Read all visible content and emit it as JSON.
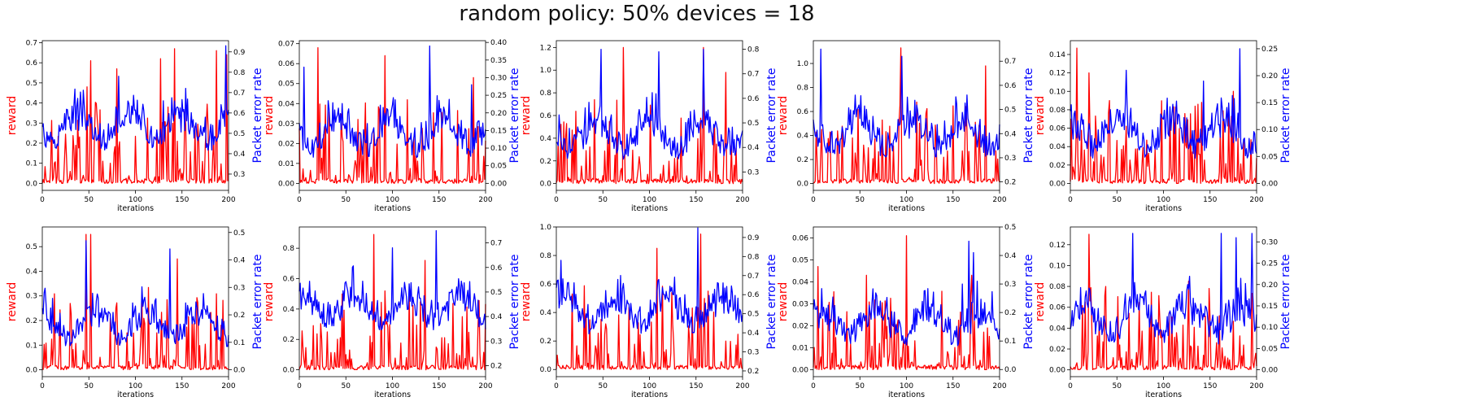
{
  "figure": {
    "title": "random policy: 50% devices = 18"
  },
  "colors": {
    "reward": "#ff0000",
    "per": "#0000ff"
  },
  "chart_data": [
    {
      "type": "line",
      "xlabel": "iterations",
      "ylabel": "reward",
      "y2label": "Packet error rate",
      "xlim": [
        0,
        200
      ],
      "xticks": [
        0,
        50,
        100,
        150,
        200
      ],
      "ylim": [
        -0.035,
        0.71
      ],
      "yticks": [
        "0.0",
        "0.1",
        "0.2",
        "0.3",
        "0.4",
        "0.5",
        "0.6",
        "0.7"
      ],
      "y2lim": [
        0.22,
        0.955
      ],
      "y2ticks": [
        "0.3",
        "0.4",
        "0.5",
        "0.6",
        "0.7",
        "0.8",
        "0.9"
      ],
      "series": [
        {
          "axis": "left",
          "color": "#ff0000",
          "min": 0.0,
          "max": 0.67,
          "peaks": [
            [
              48,
              0.48
            ],
            [
              52,
              0.61
            ],
            [
              80,
              0.57
            ],
            [
              127,
              0.62
            ],
            [
              142,
              0.67
            ],
            [
              187,
              0.66
            ],
            [
              198,
              0.64
            ]
          ]
        },
        {
          "axis": "right",
          "color": "#0000ff",
          "min": 0.3,
          "max": 0.93,
          "peaks": [
            [
              82,
              0.78
            ],
            [
              130,
              0.66
            ],
            [
              197,
              0.93
            ]
          ]
        }
      ]
    },
    {
      "type": "line",
      "xlabel": "iterations",
      "ylabel": "reward",
      "y2label": "Packet error rate",
      "xlim": [
        0,
        200
      ],
      "xticks": [
        0,
        50,
        100,
        150,
        200
      ],
      "ylim": [
        -0.0035,
        0.0715
      ],
      "yticks": [
        "0.00",
        "0.01",
        "0.02",
        "0.03",
        "0.04",
        "0.05",
        "0.06",
        "0.07"
      ],
      "y2lim": [
        -0.02,
        0.405
      ],
      "y2ticks": [
        "0.00",
        "0.05",
        "0.10",
        "0.15",
        "0.20",
        "0.25",
        "0.30",
        "0.35",
        "0.40"
      ],
      "series": [
        {
          "axis": "left",
          "color": "#ff0000",
          "min": 0.0,
          "max": 0.068,
          "peaks": [
            [
              20,
              0.068
            ],
            [
              92,
              0.064
            ],
            [
              187,
              0.053
            ]
          ]
        },
        {
          "axis": "right",
          "color": "#0000ff",
          "min": 0.0,
          "max": 0.39,
          "peaks": [
            [
              5,
              0.33
            ],
            [
              140,
              0.39
            ],
            [
              185,
              0.28
            ]
          ]
        }
      ]
    },
    {
      "type": "line",
      "xlabel": "iterations",
      "ylabel": "reward",
      "y2label": "Packet error rate",
      "xlim": [
        0,
        200
      ],
      "xticks": [
        0,
        50,
        100,
        150,
        200
      ],
      "ylim": [
        -0.06,
        1.26
      ],
      "yticks": [
        "0.0",
        "0.2",
        "0.4",
        "0.6",
        "0.8",
        "1.0",
        "1.2"
      ],
      "y2lim": [
        0.225,
        0.835
      ],
      "y2ticks": [
        "0.3",
        "0.4",
        "0.5",
        "0.6",
        "0.7",
        "0.8"
      ],
      "series": [
        {
          "axis": "left",
          "color": "#ff0000",
          "min": 0.0,
          "max": 1.2,
          "peaks": [
            [
              72,
              1.2
            ],
            [
              158,
              1.2
            ],
            [
              182,
              0.98
            ]
          ]
        },
        {
          "axis": "right",
          "color": "#0000ff",
          "min": 0.25,
          "max": 0.8,
          "peaks": [
            [
              48,
              0.8
            ],
            [
              110,
              0.79
            ],
            [
              158,
              0.8
            ]
          ]
        }
      ]
    },
    {
      "type": "line",
      "xlabel": "iterations",
      "ylabel": "reward",
      "y2label": "Packet error rate",
      "xlim": [
        0,
        200
      ],
      "xticks": [
        0,
        50,
        100,
        150,
        200
      ],
      "ylim": [
        -0.057,
        1.19
      ],
      "yticks": [
        "0.0",
        "0.2",
        "0.4",
        "0.6",
        "0.8",
        "1.0"
      ],
      "y2lim": [
        0.165,
        0.785
      ],
      "y2ticks": [
        "0.2",
        "0.3",
        "0.4",
        "0.5",
        "0.6",
        "0.7"
      ],
      "series": [
        {
          "axis": "left",
          "color": "#ff0000",
          "min": 0.0,
          "max": 1.13,
          "peaks": [
            [
              94,
              1.13
            ],
            [
              185,
              0.98
            ]
          ]
        },
        {
          "axis": "right",
          "color": "#0000ff",
          "min": 0.2,
          "max": 0.75,
          "peaks": [
            [
              8,
              0.75
            ],
            [
              95,
              0.72
            ]
          ]
        }
      ]
    },
    {
      "type": "line",
      "xlabel": "iterations",
      "ylabel": "reward",
      "y2label": "Packet error rate",
      "xlim": [
        0,
        200
      ],
      "xticks": [
        0,
        50,
        100,
        150,
        200
      ],
      "ylim": [
        -0.0075,
        0.155
      ],
      "yticks": [
        "0.00",
        "0.02",
        "0.04",
        "0.06",
        "0.08",
        "0.10",
        "0.12",
        "0.14"
      ],
      "y2lim": [
        -0.013,
        0.265
      ],
      "y2ticks": [
        "0.00",
        "0.05",
        "0.10",
        "0.15",
        "0.20",
        "0.25"
      ],
      "series": [
        {
          "axis": "left",
          "color": "#ff0000",
          "min": 0.0,
          "max": 0.147,
          "peaks": [
            [
              7,
              0.147
            ],
            [
              20,
              0.12
            ],
            [
              175,
              0.1
            ]
          ]
        },
        {
          "axis": "right",
          "color": "#0000ff",
          "min": 0.0,
          "max": 0.25,
          "peaks": [
            [
              60,
              0.21
            ],
            [
              182,
              0.25
            ],
            [
              143,
              0.19
            ]
          ]
        }
      ]
    },
    {
      "type": "line",
      "xlabel": "iterations",
      "ylabel": "reward",
      "y2label": "Packet error rate",
      "xlim": [
        0,
        200
      ],
      "xticks": [
        0,
        50,
        100,
        150,
        200
      ],
      "ylim": [
        -0.028,
        0.58
      ],
      "yticks": [
        "0.0",
        "0.1",
        "0.2",
        "0.3",
        "0.4",
        "0.5"
      ],
      "y2lim": [
        -0.025,
        0.52
      ],
      "y2ticks": [
        "0.0",
        "0.1",
        "0.2",
        "0.3",
        "0.4",
        "0.5"
      ],
      "series": [
        {
          "axis": "left",
          "color": "#ff0000",
          "min": 0.0,
          "max": 0.55,
          "peaks": [
            [
              47,
              0.55
            ],
            [
              52,
              0.55
            ],
            [
              145,
              0.45
            ]
          ]
        },
        {
          "axis": "right",
          "color": "#0000ff",
          "min": 0.0,
          "max": 0.47,
          "peaks": [
            [
              47,
              0.47
            ],
            [
              137,
              0.44
            ]
          ]
        }
      ]
    },
    {
      "type": "line",
      "xlabel": "iterations",
      "ylabel": "reward",
      "y2label": "Packet error rate",
      "xlim": [
        0,
        200
      ],
      "xticks": [
        0,
        50,
        100,
        150,
        200
      ],
      "ylim": [
        -0.045,
        0.94
      ],
      "yticks": [
        "0.0",
        "0.2",
        "0.4",
        "0.6",
        "0.8"
      ],
      "y2lim": [
        0.155,
        0.765
      ],
      "y2ticks": [
        "0.2",
        "0.3",
        "0.4",
        "0.5",
        "0.6",
        "0.7"
      ],
      "series": [
        {
          "axis": "left",
          "color": "#ff0000",
          "min": 0.0,
          "max": 0.89,
          "peaks": [
            [
              80,
              0.89
            ],
            [
              135,
              0.72
            ]
          ]
        },
        {
          "axis": "right",
          "color": "#0000ff",
          "min": 0.25,
          "max": 0.75,
          "peaks": [
            [
              147,
              0.75
            ],
            [
              100,
              0.68
            ]
          ]
        }
      ]
    },
    {
      "type": "line",
      "xlabel": "iterations",
      "ylabel": "reward",
      "y2label": "Packet error rate",
      "xlim": [
        0,
        200
      ],
      "xticks": [
        0,
        50,
        100,
        150,
        200
      ],
      "ylim": [
        -0.05,
        1.0
      ],
      "yticks": [
        "0.0",
        "0.2",
        "0.4",
        "0.6",
        "0.8",
        "1.0"
      ],
      "y2lim": [
        0.17,
        0.955
      ],
      "y2ticks": [
        "0.2",
        "0.3",
        "0.4",
        "0.5",
        "0.6",
        "0.7",
        "0.8",
        "0.9"
      ],
      "series": [
        {
          "axis": "left",
          "color": "#ff0000",
          "min": 0.0,
          "max": 0.95,
          "peaks": [
            [
              108,
              0.85
            ],
            [
              155,
              0.95
            ],
            [
              163,
              0.55
            ]
          ]
        },
        {
          "axis": "right",
          "color": "#0000ff",
          "min": 0.27,
          "max": 0.95,
          "peaks": [
            [
              152,
              0.95
            ],
            [
              5,
              0.78
            ],
            [
              110,
              0.68
            ]
          ]
        }
      ]
    },
    {
      "type": "line",
      "xlabel": "iterations",
      "ylabel": "reward",
      "y2label": "Packet error rate",
      "xlim": [
        0,
        200
      ],
      "xticks": [
        0,
        50,
        100,
        150,
        200
      ],
      "ylim": [
        -0.0032,
        0.065
      ],
      "yticks": [
        "0.00",
        "0.01",
        "0.02",
        "0.03",
        "0.04",
        "0.05",
        "0.06"
      ],
      "y2lim": [
        -0.025,
        0.5
      ],
      "y2ticks": [
        "0.0",
        "0.1",
        "0.2",
        "0.3",
        "0.4",
        "0.5"
      ],
      "series": [
        {
          "axis": "left",
          "color": "#ff0000",
          "min": 0.0,
          "max": 0.061,
          "peaks": [
            [
              5,
              0.047
            ],
            [
              57,
              0.043
            ],
            [
              100,
              0.061
            ],
            [
              170,
              0.043
            ]
          ]
        },
        {
          "axis": "right",
          "color": "#0000ff",
          "min": 0.0,
          "max": 0.45,
          "peaks": [
            [
              167,
              0.45
            ],
            [
              172,
              0.41
            ],
            [
              160,
              0.3
            ]
          ]
        }
      ]
    },
    {
      "type": "line",
      "xlabel": "iterations",
      "ylabel": "reward",
      "y2label": "Packet error rate",
      "xlim": [
        0,
        200
      ],
      "xticks": [
        0,
        50,
        100,
        150,
        200
      ],
      "ylim": [
        -0.0065,
        0.137
      ],
      "yticks": [
        "0.00",
        "0.02",
        "0.04",
        "0.06",
        "0.08",
        "0.10",
        "0.12"
      ],
      "y2lim": [
        -0.016,
        0.335
      ],
      "y2ticks": [
        "0.00",
        "0.05",
        "0.10",
        "0.15",
        "0.20",
        "0.25",
        "0.30"
      ],
      "series": [
        {
          "axis": "left",
          "color": "#ff0000",
          "min": 0.0,
          "max": 0.13,
          "peaks": [
            [
              20,
              0.13
            ],
            [
              38,
              0.08
            ],
            [
              127,
              0.085
            ]
          ]
        },
        {
          "axis": "right",
          "color": "#0000ff",
          "min": 0.0,
          "max": 0.32,
          "peaks": [
            [
              67,
              0.32
            ],
            [
              162,
              0.32
            ],
            [
              178,
              0.31
            ],
            [
              195,
              0.32
            ]
          ]
        }
      ]
    }
  ]
}
